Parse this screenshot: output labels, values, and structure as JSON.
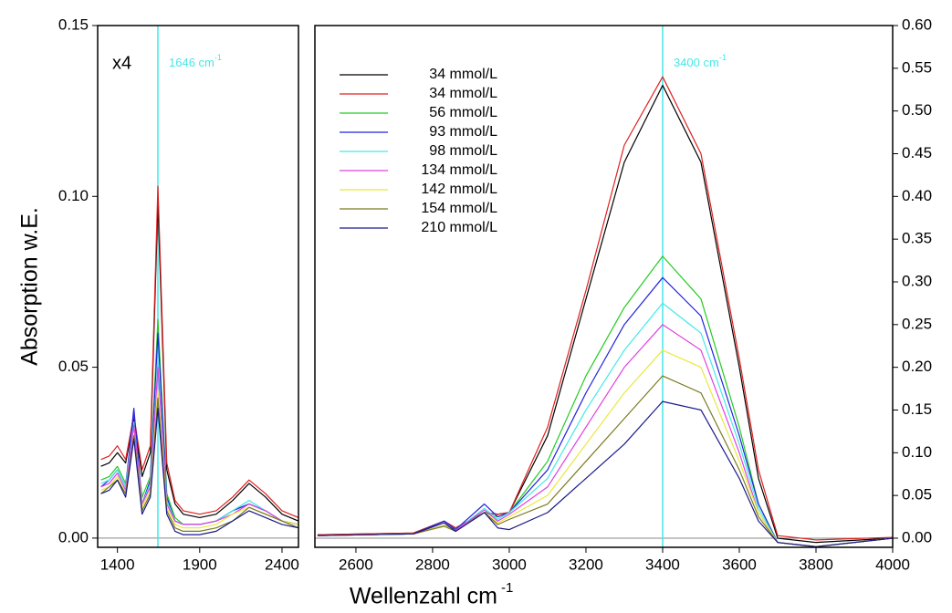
{
  "figure": {
    "ylabel": "Absorption w.E.",
    "xlabel": "Wellenzahl cm",
    "xlabel_sup": "-1"
  },
  "chart_data": [
    {
      "type": "line",
      "annotation": "x4",
      "vline": 1646,
      "vline_color": "#44e8e8",
      "vline_label": "1646 cm",
      "vline_label_sup": "-1",
      "x": [
        1300,
        1350,
        1400,
        1450,
        1500,
        1550,
        1600,
        1646,
        1700,
        1750,
        1800,
        1900,
        2000,
        2100,
        2200,
        2300,
        2400,
        2500
      ],
      "xlim": [
        1280,
        2500
      ],
      "xticks": [
        1400,
        1900,
        2400
      ],
      "ylim": [
        -0.0027,
        0.15
      ],
      "yticks": [
        {
          "value": 0,
          "label": "0.00"
        },
        {
          "value": 0.05,
          "label": "0.05"
        },
        {
          "value": 0.1,
          "label": "0.10"
        },
        {
          "value": 0.15,
          "label": "0.15"
        }
      ],
      "yaxis_side": "left",
      "series": [
        {
          "color": "#000000",
          "values": [
            0.021,
            0.022,
            0.025,
            0.022,
            0.035,
            0.018,
            0.025,
            0.098,
            0.02,
            0.01,
            0.007,
            0.006,
            0.007,
            0.011,
            0.016,
            0.012,
            0.007,
            0.005
          ]
        },
        {
          "color": "#e02020",
          "values": [
            0.023,
            0.024,
            0.027,
            0.023,
            0.036,
            0.02,
            0.027,
            0.103,
            0.022,
            0.011,
            0.008,
            0.007,
            0.008,
            0.012,
            0.017,
            0.013,
            0.008,
            0.006
          ]
        },
        {
          "color": "#22cc22",
          "values": [
            0.017,
            0.018,
            0.021,
            0.016,
            0.033,
            0.012,
            0.018,
            0.064,
            0.013,
            0.006,
            0.004,
            0.004,
            0.005,
            0.008,
            0.01,
            0.008,
            0.005,
            0.004
          ]
        },
        {
          "color": "#2222e0",
          "values": [
            0.015,
            0.017,
            0.02,
            0.015,
            0.038,
            0.01,
            0.017,
            0.06,
            0.012,
            0.005,
            0.004,
            0.004,
            0.005,
            0.008,
            0.01,
            0.008,
            0.005,
            0.004
          ]
        },
        {
          "color": "#44e8e8",
          "values": [
            0.016,
            0.017,
            0.02,
            0.015,
            0.034,
            0.01,
            0.016,
            0.052,
            0.011,
            0.005,
            0.004,
            0.004,
            0.005,
            0.008,
            0.011,
            0.008,
            0.005,
            0.004
          ]
        },
        {
          "color": "#e040e0",
          "values": [
            0.015,
            0.016,
            0.019,
            0.014,
            0.033,
            0.01,
            0.015,
            0.05,
            0.01,
            0.005,
            0.004,
            0.004,
            0.005,
            0.007,
            0.01,
            0.008,
            0.005,
            0.004
          ]
        },
        {
          "color": "#e8e840",
          "values": [
            0.014,
            0.015,
            0.018,
            0.013,
            0.03,
            0.009,
            0.014,
            0.043,
            0.009,
            0.004,
            0.003,
            0.003,
            0.004,
            0.007,
            0.009,
            0.007,
            0.005,
            0.004
          ]
        },
        {
          "color": "#7a7a20",
          "values": [
            0.013,
            0.015,
            0.017,
            0.013,
            0.03,
            0.008,
            0.013,
            0.041,
            0.008,
            0.003,
            0.002,
            0.002,
            0.003,
            0.005,
            0.009,
            0.007,
            0.005,
            0.003
          ]
        },
        {
          "color": "#1a1a8a",
          "values": [
            0.013,
            0.014,
            0.017,
            0.012,
            0.029,
            0.007,
            0.012,
            0.038,
            0.007,
            0.002,
            0.001,
            0.001,
            0.002,
            0.005,
            0.008,
            0.006,
            0.004,
            0.003
          ]
        }
      ]
    },
    {
      "type": "line",
      "vline": 3400,
      "vline_color": "#44e8e8",
      "vline_label": "3400 cm",
      "vline_label_sup": "-1",
      "x": [
        2500,
        2750,
        2830,
        2860,
        2935,
        2970,
        3000,
        3100,
        3200,
        3300,
        3400,
        3500,
        3600,
        3650,
        3700,
        3800,
        4000
      ],
      "xlim": [
        2493,
        4000
      ],
      "xticks": [
        2600,
        2800,
        3000,
        3200,
        3400,
        3600,
        3800,
        4000
      ],
      "ylim": [
        -0.0107,
        0.6
      ],
      "yticks": [
        {
          "value": 0,
          "label": "0.00"
        },
        {
          "value": 0.05,
          "label": "0.05"
        },
        {
          "value": 0.1,
          "label": "0.10"
        },
        {
          "value": 0.15,
          "label": "0.15"
        },
        {
          "value": 0.2,
          "label": "0.20"
        },
        {
          "value": 0.25,
          "label": "0.25"
        },
        {
          "value": 0.3,
          "label": "0.30"
        },
        {
          "value": 0.35,
          "label": "0.35"
        },
        {
          "value": 0.4,
          "label": "0.40"
        },
        {
          "value": 0.45,
          "label": "0.45"
        },
        {
          "value": 0.5,
          "label": "0.50"
        },
        {
          "value": 0.55,
          "label": "0.55"
        },
        {
          "value": 0.6,
          "label": "0.60"
        }
      ],
      "yaxis_side": "right",
      "legend": "upper left",
      "series": [
        {
          "name": "34 mmol/L",
          "color": "#000000",
          "values": [
            0.004,
            0.006,
            0.02,
            0.012,
            0.03,
            0.028,
            0.03,
            0.12,
            0.28,
            0.44,
            0.53,
            0.44,
            0.2,
            0.07,
            0.0,
            -0.005,
            0.0
          ]
        },
        {
          "name": "34 mmol/L",
          "color": "#e02020",
          "values": [
            0.004,
            0.006,
            0.02,
            0.012,
            0.03,
            0.028,
            0.03,
            0.13,
            0.29,
            0.46,
            0.54,
            0.45,
            0.21,
            0.08,
            0.003,
            -0.002,
            0.001
          ]
        },
        {
          "name": "56 mmol/L",
          "color": "#22cc22",
          "values": [
            0.003,
            0.005,
            0.015,
            0.01,
            0.03,
            0.025,
            0.03,
            0.09,
            0.19,
            0.27,
            0.33,
            0.28,
            0.13,
            0.04,
            -0.005,
            -0.01,
            0.0
          ]
        },
        {
          "name": "93 mmol/L",
          "color": "#2222e0",
          "values": [
            0.003,
            0.005,
            0.02,
            0.01,
            0.04,
            0.025,
            0.03,
            0.08,
            0.17,
            0.25,
            0.305,
            0.26,
            0.12,
            0.04,
            -0.005,
            -0.01,
            0.0
          ]
        },
        {
          "name": "98 mmol/L",
          "color": "#44e8e8",
          "values": [
            0.003,
            0.005,
            0.015,
            0.009,
            0.035,
            0.022,
            0.03,
            0.07,
            0.15,
            0.22,
            0.275,
            0.24,
            0.11,
            0.035,
            -0.005,
            -0.01,
            0.0
          ]
        },
        {
          "name": "134 mmol/L",
          "color": "#e040e0",
          "values": [
            0.003,
            0.005,
            0.015,
            0.009,
            0.033,
            0.02,
            0.028,
            0.06,
            0.13,
            0.2,
            0.25,
            0.22,
            0.1,
            0.03,
            -0.005,
            -0.01,
            0.0
          ]
        },
        {
          "name": "142 mmol/L",
          "color": "#e8e840",
          "values": [
            0.003,
            0.005,
            0.015,
            0.008,
            0.03,
            0.018,
            0.025,
            0.05,
            0.11,
            0.17,
            0.22,
            0.2,
            0.09,
            0.03,
            -0.005,
            -0.01,
            0.0
          ]
        },
        {
          "name": "154 mmol/L",
          "color": "#7a7a20",
          "values": [
            0.003,
            0.005,
            0.014,
            0.008,
            0.03,
            0.016,
            0.022,
            0.04,
            0.09,
            0.14,
            0.19,
            0.17,
            0.08,
            0.025,
            -0.005,
            -0.01,
            0.0
          ]
        },
        {
          "name": "210 mmol/L",
          "color": "#1a1a8a",
          "values": [
            0.003,
            0.005,
            0.018,
            0.008,
            0.03,
            0.012,
            0.01,
            0.03,
            0.07,
            0.11,
            0.16,
            0.15,
            0.07,
            0.02,
            -0.005,
            -0.01,
            0.0
          ]
        }
      ]
    }
  ]
}
